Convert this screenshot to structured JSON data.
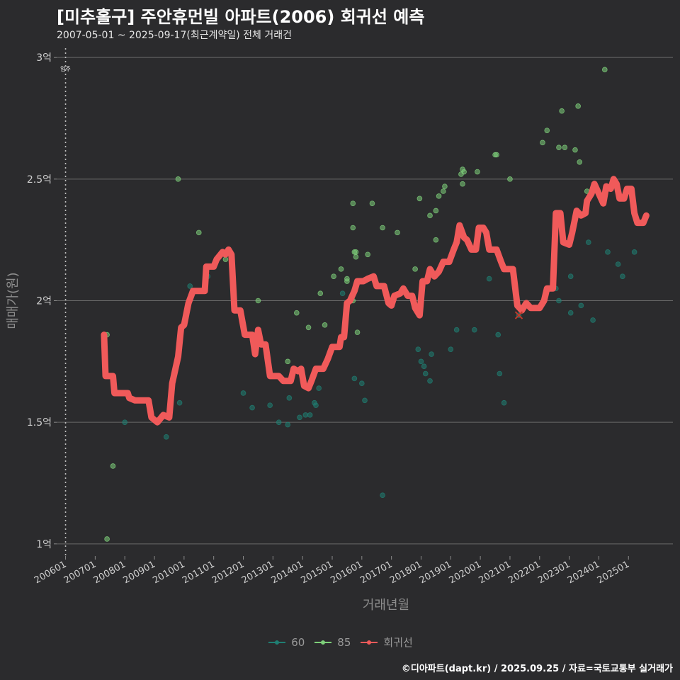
{
  "title": "[미추홀구] 주안휴먼빌 아파트(2006) 회귀선 예측",
  "subtitle": "2007-05-01 ~ 2025-09-17(최근계약일) 전체 거래건",
  "caption": "©디아파트(dapt.kr) / 2025.09.25 / 자료=국토교통부 실거래가",
  "colors": {
    "background": "#2b2b2d",
    "s60": "#1f7f73",
    "s85": "#7ed07a",
    "regression": "#f05a5a"
  },
  "chart_data": {
    "type": "scatter",
    "xlabel": "거래년월",
    "ylabel": "매매가(원)",
    "x_tick_labels": [
      "200601",
      "200701",
      "200801",
      "200901",
      "201001",
      "201101",
      "201201",
      "201301",
      "201401",
      "201501",
      "201601",
      "201701",
      "201801",
      "201901",
      "202001",
      "202101",
      "202201",
      "202301",
      "202401",
      "202501"
    ],
    "y_tick_labels": [
      "1억",
      "1.5억",
      "2억",
      "2.5억",
      "3억"
    ],
    "y_ticks": [
      1.0,
      1.5,
      2.0,
      2.5,
      3.0
    ],
    "ylim": [
      0.95,
      3.05
    ],
    "xlim": [
      2005.7,
      2026.5
    ],
    "grid": true,
    "legend_position": "bottom",
    "annotation": {
      "text": "입주",
      "x": 2006.0
    },
    "legend": [
      {
        "name": "60",
        "color": "#1f7f73"
      },
      {
        "name": "85",
        "color": "#7ed07a"
      },
      {
        "name": "회귀선",
        "color": "#f05a5a"
      }
    ],
    "series": [
      {
        "name": "60",
        "points": [
          [
            2008.05,
            1.62
          ],
          [
            2008.0,
            1.5
          ],
          [
            2009.4,
            1.44
          ],
          [
            2009.85,
            1.58
          ],
          [
            2010.2,
            2.06
          ],
          [
            2010.8,
            2.1
          ],
          [
            2012.0,
            1.62
          ],
          [
            2012.3,
            1.56
          ],
          [
            2012.9,
            1.57
          ],
          [
            2013.2,
            1.5
          ],
          [
            2013.5,
            1.49
          ],
          [
            2013.55,
            1.6
          ],
          [
            2013.9,
            1.52
          ],
          [
            2014.1,
            1.53
          ],
          [
            2014.25,
            1.53
          ],
          [
            2014.4,
            1.58
          ],
          [
            2014.45,
            1.57
          ],
          [
            2014.55,
            1.64
          ],
          [
            2015.35,
            2.03
          ],
          [
            2015.75,
            1.68
          ],
          [
            2016.0,
            1.66
          ],
          [
            2016.1,
            1.59
          ],
          [
            2016.7,
            1.2
          ],
          [
            2017.9,
            1.8
          ],
          [
            2018.0,
            1.75
          ],
          [
            2018.1,
            1.73
          ],
          [
            2018.15,
            1.7
          ],
          [
            2018.3,
            1.67
          ],
          [
            2018.35,
            1.78
          ],
          [
            2019.0,
            1.8
          ],
          [
            2019.2,
            1.88
          ],
          [
            2019.8,
            1.88
          ],
          [
            2020.6,
            1.86
          ],
          [
            2020.65,
            1.7
          ],
          [
            2020.8,
            1.58
          ],
          [
            2020.3,
            2.09
          ],
          [
            2021.3,
            1.94
          ],
          [
            2022.55,
            2.05
          ],
          [
            2022.65,
            2.0
          ],
          [
            2023.05,
            2.1
          ],
          [
            2023.05,
            1.95
          ],
          [
            2023.4,
            1.98
          ],
          [
            2023.65,
            2.24
          ],
          [
            2023.8,
            1.92
          ],
          [
            2024.3,
            2.2
          ],
          [
            2024.65,
            2.15
          ],
          [
            2024.8,
            2.1
          ],
          [
            2025.2,
            2.2
          ]
        ]
      },
      {
        "name": "85",
        "points": [
          [
            2007.3,
            1.86
          ],
          [
            2007.4,
            1.86
          ],
          [
            2007.4,
            1.02
          ],
          [
            2007.6,
            1.32
          ],
          [
            2009.8,
            2.5
          ],
          [
            2010.5,
            2.28
          ],
          [
            2011.4,
            2.17
          ],
          [
            2012.5,
            2.0
          ],
          [
            2013.5,
            1.75
          ],
          [
            2013.8,
            1.95
          ],
          [
            2014.2,
            1.89
          ],
          [
            2014.6,
            2.03
          ],
          [
            2014.75,
            1.9
          ],
          [
            2015.05,
            2.1
          ],
          [
            2015.3,
            2.13
          ],
          [
            2015.5,
            2.09
          ],
          [
            2015.5,
            2.08
          ],
          [
            2015.7,
            2.4
          ],
          [
            2015.7,
            2.3
          ],
          [
            2015.7,
            2.0
          ],
          [
            2015.75,
            2.2
          ],
          [
            2015.8,
            2.2
          ],
          [
            2015.8,
            2.18
          ],
          [
            2015.85,
            1.87
          ],
          [
            2016.2,
            2.19
          ],
          [
            2016.35,
            2.4
          ],
          [
            2016.7,
            2.3
          ],
          [
            2017.2,
            2.28
          ],
          [
            2017.8,
            2.13
          ],
          [
            2017.95,
            2.42
          ],
          [
            2018.3,
            2.35
          ],
          [
            2018.5,
            2.37
          ],
          [
            2018.5,
            2.25
          ],
          [
            2018.6,
            2.43
          ],
          [
            2018.75,
            2.45
          ],
          [
            2018.8,
            2.47
          ],
          [
            2019.35,
            2.52
          ],
          [
            2019.4,
            2.48
          ],
          [
            2019.4,
            2.54
          ],
          [
            2019.45,
            2.53
          ],
          [
            2019.9,
            2.53
          ],
          [
            2020.5,
            2.6
          ],
          [
            2020.55,
            2.6
          ],
          [
            2021.0,
            2.5
          ],
          [
            2022.1,
            2.65
          ],
          [
            2022.25,
            2.7
          ],
          [
            2022.65,
            2.63
          ],
          [
            2022.75,
            2.78
          ],
          [
            2022.85,
            2.63
          ],
          [
            2023.2,
            2.62
          ],
          [
            2023.3,
            2.8
          ],
          [
            2023.35,
            2.57
          ],
          [
            2023.6,
            2.45
          ],
          [
            2024.2,
            2.95
          ]
        ]
      },
      {
        "name": "회귀선",
        "line": [
          [
            2007.3,
            1.86
          ],
          [
            2007.35,
            1.69
          ],
          [
            2007.6,
            1.69
          ],
          [
            2007.65,
            1.62
          ],
          [
            2008.1,
            1.62
          ],
          [
            2008.15,
            1.6
          ],
          [
            2008.35,
            1.59
          ],
          [
            2008.8,
            1.59
          ],
          [
            2008.9,
            1.52
          ],
          [
            2009.1,
            1.5
          ],
          [
            2009.3,
            1.53
          ],
          [
            2009.5,
            1.52
          ],
          [
            2009.6,
            1.66
          ],
          [
            2009.8,
            1.77
          ],
          [
            2009.9,
            1.89
          ],
          [
            2010.0,
            1.9
          ],
          [
            2010.15,
            1.99
          ],
          [
            2010.3,
            2.04
          ],
          [
            2010.7,
            2.04
          ],
          [
            2010.75,
            2.14
          ],
          [
            2011.0,
            2.14
          ],
          [
            2011.1,
            2.17
          ],
          [
            2011.3,
            2.2
          ],
          [
            2011.4,
            2.19
          ],
          [
            2011.5,
            2.21
          ],
          [
            2011.6,
            2.19
          ],
          [
            2011.7,
            1.96
          ],
          [
            2011.9,
            1.96
          ],
          [
            2012.05,
            1.86
          ],
          [
            2012.3,
            1.86
          ],
          [
            2012.4,
            1.78
          ],
          [
            2012.5,
            1.88
          ],
          [
            2012.6,
            1.82
          ],
          [
            2012.75,
            1.82
          ],
          [
            2012.9,
            1.69
          ],
          [
            2013.2,
            1.69
          ],
          [
            2013.35,
            1.67
          ],
          [
            2013.6,
            1.67
          ],
          [
            2013.7,
            1.72
          ],
          [
            2013.85,
            1.71
          ],
          [
            2013.95,
            1.72
          ],
          [
            2014.05,
            1.65
          ],
          [
            2014.2,
            1.64
          ],
          [
            2014.3,
            1.67
          ],
          [
            2014.45,
            1.72
          ],
          [
            2014.7,
            1.72
          ],
          [
            2014.85,
            1.76
          ],
          [
            2015.0,
            1.81
          ],
          [
            2015.25,
            1.81
          ],
          [
            2015.3,
            1.85
          ],
          [
            2015.4,
            1.85
          ],
          [
            2015.5,
            1.99
          ],
          [
            2015.6,
            2.0
          ],
          [
            2015.75,
            2.04
          ],
          [
            2015.85,
            2.08
          ],
          [
            2016.05,
            2.08
          ],
          [
            2016.2,
            2.09
          ],
          [
            2016.4,
            2.1
          ],
          [
            2016.5,
            2.06
          ],
          [
            2016.75,
            2.06
          ],
          [
            2016.9,
            1.99
          ],
          [
            2017.0,
            1.98
          ],
          [
            2017.1,
            2.02
          ],
          [
            2017.3,
            2.03
          ],
          [
            2017.4,
            2.05
          ],
          [
            2017.55,
            2.02
          ],
          [
            2017.7,
            2.02
          ],
          [
            2017.8,
            1.97
          ],
          [
            2017.95,
            1.94
          ],
          [
            2018.05,
            2.08
          ],
          [
            2018.2,
            2.08
          ],
          [
            2018.3,
            2.13
          ],
          [
            2018.45,
            2.1
          ],
          [
            2018.6,
            2.12
          ],
          [
            2018.75,
            2.16
          ],
          [
            2018.95,
            2.16
          ],
          [
            2019.1,
            2.21
          ],
          [
            2019.2,
            2.24
          ],
          [
            2019.3,
            2.31
          ],
          [
            2019.45,
            2.26
          ],
          [
            2019.55,
            2.25
          ],
          [
            2019.7,
            2.21
          ],
          [
            2019.85,
            2.21
          ],
          [
            2019.95,
            2.3
          ],
          [
            2020.1,
            2.3
          ],
          [
            2020.2,
            2.28
          ],
          [
            2020.3,
            2.21
          ],
          [
            2020.55,
            2.21
          ],
          [
            2020.7,
            2.16
          ],
          [
            2020.8,
            2.13
          ],
          [
            2020.95,
            2.13
          ],
          [
            2021.1,
            2.13
          ],
          [
            2021.25,
            1.98
          ],
          [
            2021.4,
            1.96
          ],
          [
            2021.55,
            1.99
          ],
          [
            2021.7,
            1.97
          ],
          [
            2022.0,
            1.97
          ],
          [
            2022.15,
            2.0
          ],
          [
            2022.25,
            2.05
          ],
          [
            2022.45,
            2.05
          ],
          [
            2022.55,
            2.36
          ],
          [
            2022.7,
            2.36
          ],
          [
            2022.8,
            2.24
          ],
          [
            2023.0,
            2.23
          ],
          [
            2023.1,
            2.28
          ],
          [
            2023.25,
            2.37
          ],
          [
            2023.4,
            2.35
          ],
          [
            2023.55,
            2.36
          ],
          [
            2023.6,
            2.41
          ],
          [
            2023.75,
            2.44
          ],
          [
            2023.85,
            2.48
          ],
          [
            2024.0,
            2.44
          ],
          [
            2024.15,
            2.4
          ],
          [
            2024.25,
            2.47
          ],
          [
            2024.4,
            2.46
          ],
          [
            2024.5,
            2.5
          ],
          [
            2024.6,
            2.48
          ],
          [
            2024.7,
            2.42
          ],
          [
            2024.85,
            2.42
          ],
          [
            2024.95,
            2.46
          ],
          [
            2025.1,
            2.46
          ],
          [
            2025.2,
            2.36
          ],
          [
            2025.3,
            2.32
          ],
          [
            2025.5,
            2.32
          ],
          [
            2025.6,
            2.35
          ]
        ]
      }
    ],
    "marker": {
      "x": 2021.3,
      "y": 1.94,
      "symbol": "x"
    }
  }
}
